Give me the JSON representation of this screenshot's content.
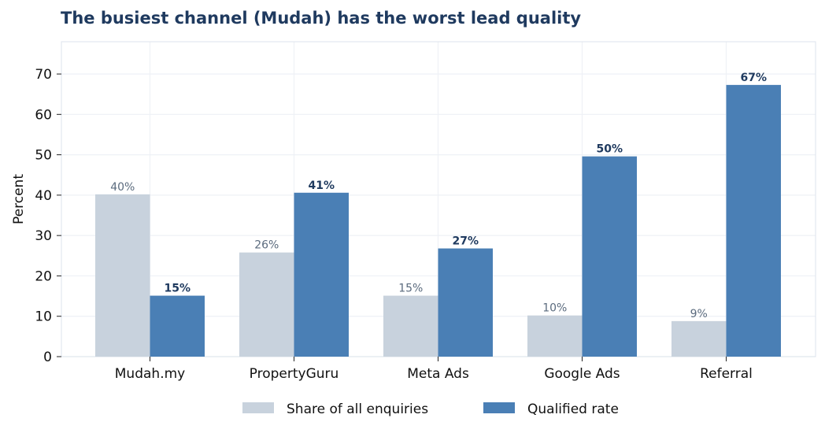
{
  "chart_data": {
    "type": "bar",
    "title": "The busiest channel (Mudah) has the worst lead quality",
    "xlabel": "",
    "ylabel": "Percent",
    "ylim": [
      0,
      78
    ],
    "yticks": [
      0,
      10,
      20,
      30,
      40,
      50,
      60,
      70
    ],
    "grid": true,
    "legend_position": "bottom",
    "categories": [
      "Mudah.my",
      "PropertyGuru",
      "Meta Ads",
      "Google Ads",
      "Referral"
    ],
    "series": [
      {
        "name": "Share of all enquiries",
        "values": [
          40.2,
          25.8,
          15.1,
          10.2,
          8.8
        ],
        "labels": [
          "40%",
          "26%",
          "15%",
          "10%",
          "9%"
        ],
        "color": "#c8d2dd"
      },
      {
        "name": "Qualified rate",
        "values": [
          15.1,
          40.6,
          26.8,
          49.6,
          67.3
        ],
        "labels": [
          "15%",
          "41%",
          "27%",
          "50%",
          "67%"
        ],
        "color": "#4a7fb5"
      }
    ]
  }
}
